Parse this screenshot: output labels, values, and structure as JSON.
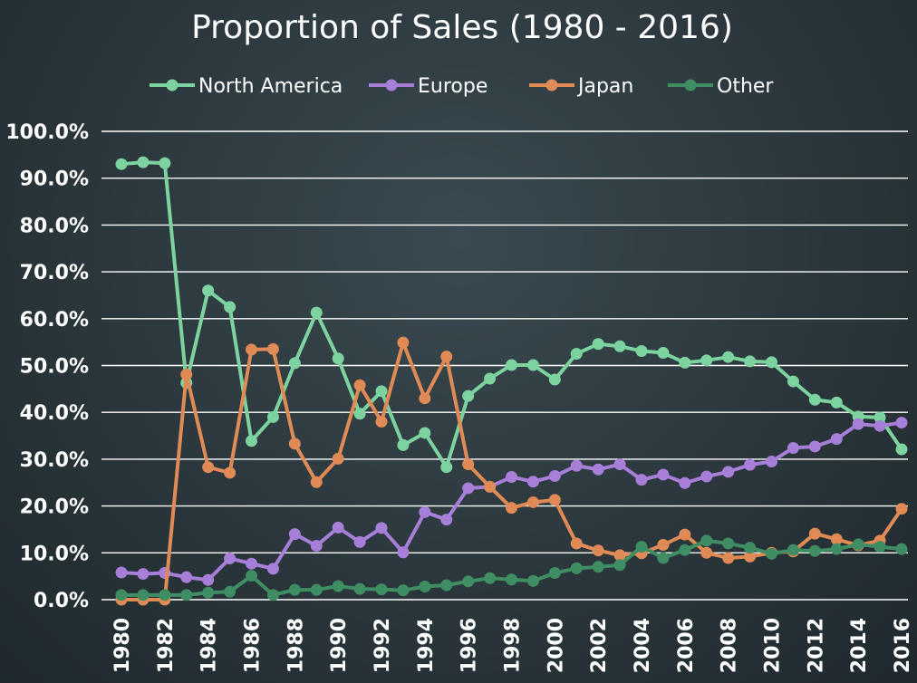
{
  "chart_data": {
    "type": "line",
    "title": "Proportion of Sales (1980 - 2016)",
    "xlabel": "",
    "ylabel": "",
    "ylim": [
      0,
      100
    ],
    "y_ticks": [
      "0.0%",
      "10.0%",
      "20.0%",
      "30.0%",
      "40.0%",
      "50.0%",
      "60.0%",
      "70.0%",
      "80.0%",
      "90.0%",
      "100.0%"
    ],
    "x_ticks": [
      "1980",
      "1982",
      "1984",
      "1986",
      "1988",
      "1990",
      "1992",
      "1994",
      "1996",
      "1998",
      "2000",
      "2002",
      "2004",
      "2006",
      "2008",
      "2010",
      "2012",
      "2014",
      "2016"
    ],
    "grid": "horizontal",
    "legend_position": "top",
    "x": [
      1980,
      1981,
      1982,
      1983,
      1984,
      1985,
      1986,
      1987,
      1988,
      1989,
      1990,
      1991,
      1992,
      1993,
      1994,
      1995,
      1996,
      1997,
      1998,
      1999,
      2000,
      2001,
      2002,
      2003,
      2004,
      2005,
      2006,
      2007,
      2008,
      2009,
      2010,
      2011,
      2012,
      2013,
      2014,
      2015,
      2016
    ],
    "series": [
      {
        "name": "North America",
        "color": "#7dd3a0",
        "values": [
          93.0,
          93.4,
          93.2,
          46.3,
          66.0,
          62.5,
          33.9,
          39.0,
          50.5,
          61.3,
          51.5,
          39.7,
          44.5,
          33.0,
          35.6,
          28.3,
          43.5,
          47.2,
          50.1,
          50.1,
          47.0,
          52.5,
          54.6,
          54.1,
          53.1,
          52.7,
          50.6,
          51.1,
          51.8,
          50.9,
          50.7,
          46.6,
          42.7,
          42.1,
          39.1,
          38.9,
          32.1
        ]
      },
      {
        "name": "Europe",
        "color": "#a77fd9",
        "values": [
          5.8,
          5.5,
          5.7,
          4.8,
          4.2,
          8.8,
          7.7,
          6.6,
          14.0,
          11.5,
          15.4,
          12.3,
          15.3,
          10.1,
          18.7,
          17.1,
          23.8,
          24.1,
          26.2,
          25.2,
          26.4,
          28.6,
          27.8,
          28.9,
          25.6,
          26.7,
          24.9,
          26.3,
          27.3,
          28.8,
          29.5,
          32.4,
          32.7,
          34.3,
          37.5,
          37.1,
          37.8
        ]
      },
      {
        "name": "Japan",
        "color": "#e08a55",
        "values": [
          0.0,
          0.0,
          0.0,
          48.1,
          28.3,
          27.1,
          53.4,
          53.5,
          33.3,
          25.1,
          30.1,
          45.8,
          38.0,
          54.9,
          43.0,
          51.9,
          28.9,
          24.1,
          19.6,
          20.8,
          21.3,
          12.0,
          10.5,
          9.5,
          9.9,
          11.7,
          13.9,
          10.0,
          8.9,
          9.2,
          10.0,
          10.3,
          14.1,
          12.9,
          11.6,
          12.6,
          19.4
        ]
      },
      {
        "name": "Other",
        "color": "#3f8d62",
        "values": [
          1.0,
          1.0,
          1.0,
          1.0,
          1.5,
          1.7,
          5.1,
          1.0,
          2.1,
          2.1,
          2.9,
          2.3,
          2.2,
          2.0,
          2.8,
          3.1,
          3.9,
          4.6,
          4.3,
          4.0,
          5.7,
          6.7,
          7.0,
          7.4,
          11.3,
          8.9,
          10.6,
          12.6,
          12.0,
          11.1,
          9.8,
          10.6,
          10.4,
          10.8,
          11.8,
          11.3,
          10.8
        ]
      }
    ]
  }
}
